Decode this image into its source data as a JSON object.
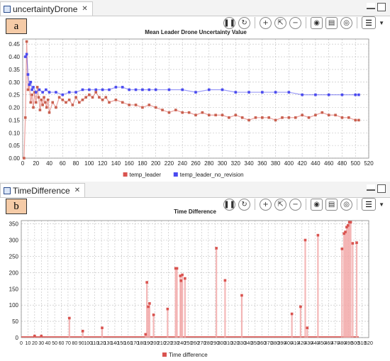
{
  "panels": [
    {
      "tab": {
        "label": "uncertaintyDrone",
        "close": "✕"
      },
      "label": "a",
      "chart_data": {
        "type": "scatter",
        "title": "Mean Leader Drone Uncertainty Value",
        "xlabel": "",
        "ylabel": "",
        "xlim": [
          0,
          520
        ],
        "ylim": [
          0,
          0.47
        ],
        "xticks": [
          "0",
          "20",
          "40",
          "60",
          "80",
          "100",
          "120",
          "140",
          "160",
          "180",
          "200",
          "220",
          "240",
          "260",
          "280",
          "300",
          "320",
          "340",
          "360",
          "380",
          "400",
          "420",
          "440",
          "460",
          "480",
          "500",
          "520"
        ],
        "yticks": [
          "0.00",
          "0.05",
          "0.10",
          "0.15",
          "0.20",
          "0.25",
          "0.30",
          "0.35",
          "0.40",
          "0.45"
        ],
        "grid": true,
        "legend": "bottom-center",
        "series": [
          {
            "name": "temp_leader",
            "color": "#d9534f",
            "x": [
              2,
              4,
              6,
              8,
              10,
              12,
              14,
              16,
              18,
              20,
              22,
              24,
              26,
              28,
              30,
              32,
              34,
              36,
              38,
              40,
              45,
              50,
              55,
              60,
              65,
              70,
              75,
              80,
              85,
              90,
              95,
              100,
              105,
              110,
              115,
              120,
              125,
              130,
              140,
              150,
              160,
              170,
              180,
              190,
              200,
              210,
              220,
              230,
              240,
              250,
              260,
              270,
              280,
              290,
              300,
              310,
              320,
              330,
              340,
              350,
              360,
              370,
              380,
              390,
              400,
              410,
              420,
              430,
              440,
              450,
              460,
              470,
              480,
              490,
              500,
              505
            ],
            "y": [
              0.0,
              0.16,
              0.46,
              0.27,
              0.29,
              0.22,
              0.25,
              0.2,
              0.26,
              0.22,
              0.28,
              0.24,
              0.19,
              0.23,
              0.21,
              0.24,
              0.22,
              0.2,
              0.23,
              0.18,
              0.22,
              0.2,
              0.24,
              0.23,
              0.22,
              0.23,
              0.21,
              0.24,
              0.22,
              0.23,
              0.24,
              0.25,
              0.24,
              0.26,
              0.24,
              0.23,
              0.24,
              0.22,
              0.23,
              0.22,
              0.21,
              0.21,
              0.2,
              0.21,
              0.2,
              0.19,
              0.18,
              0.19,
              0.18,
              0.18,
              0.17,
              0.18,
              0.17,
              0.17,
              0.17,
              0.16,
              0.17,
              0.16,
              0.15,
              0.16,
              0.16,
              0.16,
              0.15,
              0.16,
              0.16,
              0.16,
              0.17,
              0.16,
              0.17,
              0.18,
              0.17,
              0.17,
              0.16,
              0.16,
              0.15,
              0.15
            ]
          },
          {
            "name": "temp_leader_no_revision",
            "color": "#4a4af0",
            "x": [
              4,
              6,
              8,
              10,
              12,
              14,
              16,
              20,
              25,
              30,
              35,
              40,
              50,
              60,
              70,
              80,
              90,
              100,
              110,
              120,
              130,
              140,
              150,
              160,
              170,
              180,
              190,
              200,
              220,
              240,
              260,
              280,
              300,
              320,
              340,
              360,
              380,
              400,
              420,
              440,
              460,
              480,
              500,
              505
            ],
            "y": [
              0.4,
              0.41,
              0.33,
              0.29,
              0.3,
              0.27,
              0.28,
              0.26,
              0.27,
              0.26,
              0.27,
              0.26,
              0.26,
              0.25,
              0.26,
              0.26,
              0.27,
              0.27,
              0.27,
              0.27,
              0.27,
              0.28,
              0.28,
              0.27,
              0.27,
              0.27,
              0.27,
              0.27,
              0.27,
              0.27,
              0.26,
              0.27,
              0.27,
              0.26,
              0.26,
              0.26,
              0.26,
              0.26,
              0.25,
              0.25,
              0.25,
              0.25,
              0.25,
              0.25
            ]
          }
        ]
      }
    },
    {
      "tab": {
        "label": "TimeDifference",
        "close": "✕"
      },
      "label": "b",
      "chart_data": {
        "type": "scatter",
        "title": "Time Difference",
        "xlabel": "",
        "ylabel": "",
        "xlim": [
          0,
          520
        ],
        "ylim": [
          0,
          360
        ],
        "xticks": [
          "0",
          "10",
          "20",
          "30",
          "40",
          "50",
          "60",
          "70",
          "80",
          "90",
          "100",
          "110",
          "120",
          "130",
          "140",
          "150",
          "160",
          "170",
          "180",
          "190",
          "200",
          "210",
          "220",
          "230",
          "240",
          "250",
          "260",
          "270",
          "280",
          "290",
          "300",
          "310",
          "320",
          "330",
          "340",
          "350",
          "360",
          "370",
          "380",
          "390",
          "400",
          "410",
          "420",
          "430",
          "440",
          "450",
          "460",
          "470",
          "480",
          "490",
          "500",
          "510",
          "520"
        ],
        "yticks": [
          "0",
          "50",
          "100",
          "150",
          "200",
          "250",
          "300",
          "350"
        ],
        "grid": true,
        "legend": "bottom-center",
        "series": [
          {
            "name": "Time difference",
            "color": "#d9534f",
            "x": [
              20,
              30,
              72,
              92,
              121,
              186,
              188,
              190,
              192,
              198,
              219,
              231,
              233,
              238,
              239,
              241,
              245,
              292,
              305,
              330,
              405,
              418,
              425,
              428,
              444,
              480,
              483,
              485,
              487,
              489,
              491,
              493,
              496,
              502
            ],
            "y": [
              5,
              5,
              60,
              20,
              30,
              10,
              170,
              95,
              105,
              70,
              88,
              213,
              213,
              190,
              175,
              193,
              182,
              275,
              176,
              130,
              73,
              95,
              300,
              30,
              315,
              273,
              320,
              325,
              340,
              345,
              355,
              355,
              290,
              292
            ]
          }
        ]
      }
    }
  ]
}
